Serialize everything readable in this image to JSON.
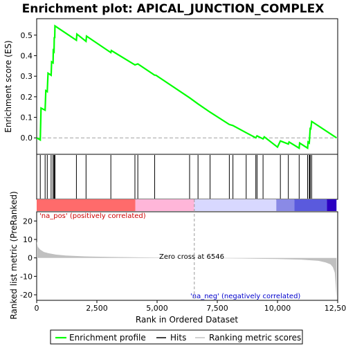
{
  "chart_data": {
    "title": "Enrichment plot: APICAL_JUNCTION_COMPLEX",
    "es_panel": {
      "type": "line",
      "ylabel": "Enrichment score (ES)",
      "ylim": [
        -0.08,
        0.58
      ],
      "yticks": [
        0.0,
        0.1,
        0.2,
        0.3,
        0.4,
        0.5
      ],
      "ytick_labels": [
        "0.0",
        "0.1",
        "0.2",
        "0.3",
        "0.4",
        "0.5"
      ],
      "line_color": "#00ff00",
      "points": [
        [
          0,
          0.0
        ],
        [
          150,
          -0.01
        ],
        [
          180,
          0.145
        ],
        [
          350,
          0.135
        ],
        [
          380,
          0.23
        ],
        [
          440,
          0.225
        ],
        [
          470,
          0.315
        ],
        [
          600,
          0.305
        ],
        [
          620,
          0.37
        ],
        [
          680,
          0.365
        ],
        [
          690,
          0.425
        ],
        [
          720,
          0.42
        ],
        [
          730,
          0.49
        ],
        [
          750,
          0.485
        ],
        [
          760,
          0.545
        ],
        [
          1650,
          0.475
        ],
        [
          1670,
          0.505
        ],
        [
          2050,
          0.47
        ],
        [
          2070,
          0.495
        ],
        [
          3080,
          0.415
        ],
        [
          3100,
          0.425
        ],
        [
          4080,
          0.355
        ],
        [
          4200,
          0.36
        ],
        [
          4900,
          0.305
        ],
        [
          4950,
          0.305
        ],
        [
          6350,
          0.195
        ],
        [
          6700,
          0.165
        ],
        [
          7200,
          0.125
        ],
        [
          8000,
          0.065
        ],
        [
          8150,
          0.06
        ],
        [
          8700,
          0.025
        ],
        [
          9100,
          0.0
        ],
        [
          9150,
          0.01
        ],
        [
          9400,
          -0.005
        ],
        [
          9450,
          0.005
        ],
        [
          10000,
          -0.045
        ],
        [
          10120,
          -0.015
        ],
        [
          10450,
          -0.03
        ],
        [
          10480,
          -0.02
        ],
        [
          10900,
          -0.05
        ],
        [
          10920,
          -0.025
        ],
        [
          11250,
          -0.05
        ],
        [
          11270,
          -0.02
        ],
        [
          11320,
          -0.025
        ],
        [
          11340,
          0.01
        ],
        [
          11360,
          0.05
        ],
        [
          11380,
          0.04
        ],
        [
          11420,
          0.08
        ],
        [
          12450,
          0.0
        ]
      ]
    },
    "hits_panel": {
      "label": "Hits",
      "positions": [
        150,
        350,
        440,
        600,
        680,
        720,
        750,
        760,
        1650,
        2050,
        3080,
        4080,
        4200,
        4900,
        6350,
        6700,
        7200,
        8000,
        8150,
        8700,
        9100,
        9150,
        9400,
        10120,
        10450,
        10900,
        11250,
        11320,
        11340,
        11360,
        11420
      ]
    },
    "colorbar": {
      "segments": [
        {
          "from": 0,
          "to": 4100,
          "color": "#ff6b6b"
        },
        {
          "from": 4100,
          "to": 6546,
          "color": "#ffb6d9"
        },
        {
          "from": 6546,
          "to": 9950,
          "color": "#d8d8ff"
        },
        {
          "from": 9950,
          "to": 10700,
          "color": "#8a8ae6"
        },
        {
          "from": 10700,
          "to": 12050,
          "color": "#5a5add"
        },
        {
          "from": 12050,
          "to": 12450,
          "color": "#2b00c2"
        }
      ]
    },
    "metric_panel": {
      "type": "area",
      "ylabel": "Ranked list metric (PreRanked)",
      "xlabel": "Rank in Ordered Dataset",
      "xlim": [
        0,
        12500
      ],
      "ylim": [
        -23,
        25
      ],
      "xticks": [
        0,
        2500,
        5000,
        7500,
        10000,
        12500
      ],
      "xtick_labels": [
        "0",
        "2,500",
        "5,000",
        "7,500",
        "10,000",
        "12,500"
      ],
      "yticks": [
        -20,
        -10,
        0,
        10,
        20
      ],
      "ytick_labels": [
        "-20",
        "-10",
        "0",
        "10",
        "20"
      ],
      "fill_color": "#c0c0c0",
      "points": [
        [
          0,
          9
        ],
        [
          50,
          6
        ],
        [
          150,
          4.5
        ],
        [
          300,
          3.2
        ],
        [
          500,
          2.5
        ],
        [
          800,
          1.8
        ],
        [
          1200,
          1.3
        ],
        [
          2000,
          0.8
        ],
        [
          3000,
          0.5
        ],
        [
          4500,
          0.25
        ],
        [
          6546,
          0
        ],
        [
          8500,
          -0.3
        ],
        [
          10000,
          -0.6
        ],
        [
          11000,
          -1.0
        ],
        [
          11700,
          -1.6
        ],
        [
          12000,
          -2.5
        ],
        [
          12200,
          -3.5
        ],
        [
          12300,
          -5
        ],
        [
          12380,
          -8
        ],
        [
          12450,
          -21
        ]
      ],
      "zero_cross": 6546,
      "zero_cross_label": "Zero cross at 6546",
      "pos_label": "'na_pos' (positively correlated)",
      "neg_label": "'na_neg' (negatively correlated)"
    },
    "legend": {
      "entries": [
        {
          "label": "Enrichment profile",
          "color": "#00ff00"
        },
        {
          "label": "Hits",
          "color": "#000000"
        },
        {
          "label": "Ranking metric scores",
          "color": "#c0c0c0"
        }
      ]
    }
  }
}
